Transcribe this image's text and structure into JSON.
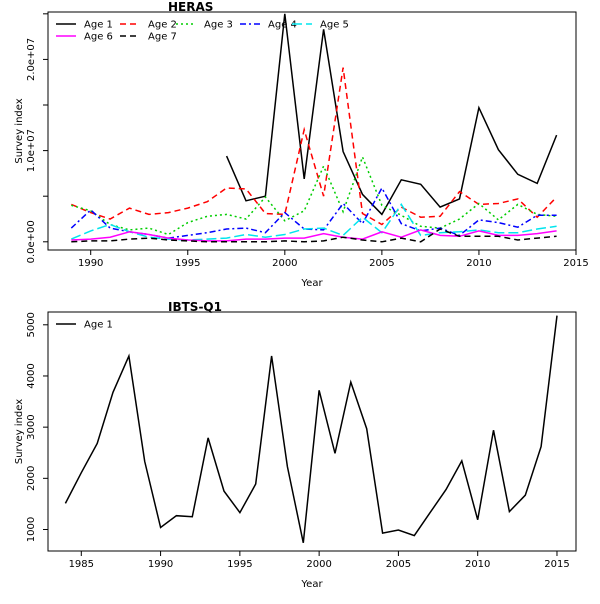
{
  "chart_data": [
    {
      "type": "line",
      "title": "HERAS",
      "xlabel": "Year",
      "ylabel": "Survey index",
      "xlim": [
        1987.8,
        2015
      ],
      "ylim": [
        -900000,
        25200000
      ],
      "x_ticks": [
        1990,
        1995,
        2000,
        2005,
        2010,
        2015
      ],
      "y_ticks": [
        {
          "value": 0,
          "label": "0.0e+00"
        },
        {
          "value": 10000000,
          "label": "1.0e+07"
        },
        {
          "value": 20000000,
          "label": "2.0e+07"
        }
      ],
      "y_minor_ticks": [
        5000000,
        15000000,
        25000000
      ],
      "legend_position": "top-left",
      "series": [
        {
          "name": "Age 1",
          "color": "#000000",
          "dash": "solid",
          "x": [
            1997,
            1998,
            1999,
            2000,
            2001,
            2002,
            2003,
            2004,
            2005,
            2006,
            2007,
            2008,
            2009,
            2010,
            2011,
            2012,
            2013,
            2014
          ],
          "y": [
            9400000,
            4500000,
            5000000,
            25000000,
            6900000,
            23300000,
            9900000,
            5200000,
            3000000,
            6800000,
            6300000,
            3800000,
            4700000,
            14700000,
            10100000,
            7400000,
            6400000,
            11700000
          ]
        },
        {
          "name": "Age 2",
          "color": "#ff0000",
          "dash": "dashed",
          "x": [
            1989,
            1990,
            1991,
            1992,
            1993,
            1994,
            1995,
            1996,
            1997,
            1998,
            1999,
            2000,
            2001,
            2002,
            2003,
            2004,
            2005,
            2006,
            2007,
            2008,
            2009,
            2010,
            2011,
            2012,
            2013,
            2014
          ],
          "y": [
            4100000,
            3200000,
            2500000,
            3700000,
            3000000,
            3200000,
            3700000,
            4400000,
            5900000,
            5800000,
            3100000,
            3000000,
            12300000,
            5000000,
            19100000,
            3100000,
            1900000,
            3800000,
            2700000,
            2800000,
            5500000,
            4100000,
            4200000,
            4700000,
            2700000,
            4900000
          ]
        },
        {
          "name": "Age 3",
          "color": "#00cd00",
          "dash": "dotted",
          "x": [
            1989,
            1990,
            1991,
            1992,
            1993,
            1994,
            1995,
            1996,
            1997,
            1998,
            1999,
            2000,
            2001,
            2002,
            2003,
            2004,
            2005,
            2006,
            2007,
            2008,
            2009,
            2010,
            2011,
            2012,
            2013,
            2014
          ],
          "y": [
            4000000,
            3400000,
            1900000,
            1300000,
            1500000,
            800000,
            2100000,
            2800000,
            3000000,
            2500000,
            4900000,
            2300000,
            3400000,
            8300000,
            3300000,
            9300000,
            4000000,
            2900000,
            1700000,
            1500000,
            2500000,
            4200000,
            2400000,
            4100000,
            3000000,
            2800000
          ]
        },
        {
          "name": "Age 4",
          "color": "#0000ff",
          "dash": "dashdot",
          "x": [
            1989,
            1990,
            1991,
            1992,
            1993,
            1994,
            1995,
            1996,
            1997,
            1998,
            1999,
            2000,
            2001,
            2002,
            2003,
            2004,
            2005,
            2006,
            2007,
            2008,
            2009,
            2010,
            2011,
            2012,
            2013,
            2014
          ],
          "y": [
            1500000,
            3500000,
            1500000,
            1100000,
            800000,
            400000,
            700000,
            1000000,
            1400000,
            1500000,
            1000000,
            3200000,
            1400000,
            1300000,
            4200000,
            2000000,
            5900000,
            2000000,
            1200000,
            1500000,
            700000,
            2400000,
            2100000,
            1600000,
            2900000,
            2900000
          ]
        },
        {
          "name": "Age 5",
          "color": "#00e5ee",
          "dash": "longdash",
          "x": [
            1989,
            1990,
            1991,
            1992,
            1993,
            1994,
            1995,
            1996,
            1997,
            1998,
            1999,
            2000,
            2001,
            2002,
            2003,
            2004,
            2005,
            2006,
            2007,
            2008,
            2009,
            2010,
            2011,
            2012,
            2013,
            2014
          ],
          "y": [
            300000,
            1200000,
            1900000,
            1100000,
            500000,
            300000,
            200000,
            300000,
            400000,
            800000,
            500000,
            800000,
            1400000,
            1500000,
            700000,
            2700000,
            1000000,
            4100000,
            700000,
            1000000,
            1100000,
            1300000,
            1000000,
            1000000,
            1400000,
            1700000
          ]
        },
        {
          "name": "Age 6",
          "color": "#ff00ff",
          "dash": "solid",
          "x": [
            1989,
            1990,
            1991,
            1992,
            1993,
            1994,
            1995,
            1996,
            1997,
            1998,
            1999,
            2000,
            2001,
            2002,
            2003,
            2004,
            2005,
            2006,
            2007,
            2008,
            2009,
            2010,
            2011,
            2012,
            2013,
            2014
          ],
          "y": [
            200000,
            300000,
            500000,
            1100000,
            800000,
            400000,
            200000,
            100000,
            100000,
            300000,
            300000,
            400000,
            400000,
            900000,
            500000,
            300000,
            1100000,
            500000,
            1300000,
            700000,
            600000,
            1200000,
            700000,
            700000,
            900000,
            1200000
          ]
        },
        {
          "name": "Age 7",
          "color": "#000000",
          "dash": "dashed",
          "x": [
            1989,
            1990,
            1991,
            1992,
            1993,
            1994,
            1995,
            1996,
            1997,
            1998,
            1999,
            2000,
            2001,
            2002,
            2003,
            2004,
            2005,
            2006,
            2007,
            2008,
            2009,
            2010,
            2011,
            2012,
            2013,
            2014
          ],
          "y": [
            0,
            100000,
            100000,
            300000,
            400000,
            200000,
            100000,
            0,
            0,
            0,
            0,
            100000,
            0,
            100000,
            500000,
            200000,
            0,
            400000,
            0,
            1400000,
            600000,
            600000,
            600000,
            200000,
            400000,
            600000
          ]
        }
      ]
    },
    {
      "type": "line",
      "title": "IBTS-Q1",
      "xlabel": "Year",
      "ylabel": "Survey index",
      "xlim": [
        1982.9,
        2016.2
      ],
      "ylim": [
        580,
        5250
      ],
      "x_ticks": [
        1985,
        1990,
        1995,
        2000,
        2005,
        2010,
        2015
      ],
      "y_ticks": [
        {
          "value": 1000,
          "label": "1000"
        },
        {
          "value": 2000,
          "label": "2000"
        },
        {
          "value": 3000,
          "label": "3000"
        },
        {
          "value": 4000,
          "label": "4000"
        },
        {
          "value": 5000,
          "label": "5000"
        }
      ],
      "legend_position": "top-left",
      "series": [
        {
          "name": "Age 1",
          "color": "#000000",
          "dash": "solid",
          "x": [
            1984,
            1985,
            1986,
            1987,
            1988,
            1989,
            1990,
            1991,
            1992,
            1993,
            1994,
            1995,
            1996,
            1997,
            1998,
            1999,
            2000,
            2001,
            2002,
            2003,
            2004,
            2005,
            2006,
            2007,
            2008,
            2009,
            2010,
            2011,
            2012,
            2013,
            2014,
            2015
          ],
          "y": [
            1510,
            2110,
            2680,
            3680,
            4390,
            2330,
            1040,
            1270,
            1250,
            2790,
            1750,
            1330,
            1890,
            4390,
            2230,
            740,
            3720,
            2490,
            3880,
            2970,
            930,
            990,
            880,
            1330,
            1780,
            2340,
            1190,
            2940,
            1350,
            1670,
            2620,
            5180
          ]
        }
      ]
    }
  ]
}
